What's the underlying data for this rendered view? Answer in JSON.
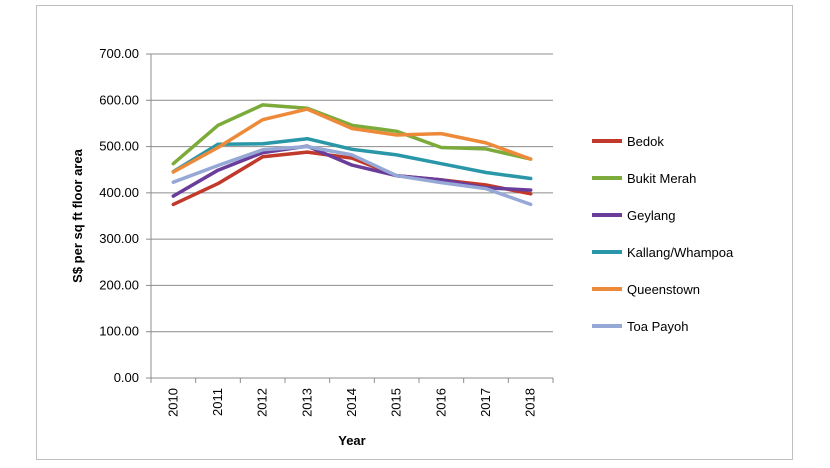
{
  "chart_data": {
    "type": "line",
    "x": [
      "2010",
      "2011",
      "2012",
      "2013",
      "2014",
      "2015",
      "2016",
      "2017",
      "2018"
    ],
    "xlabel": "Year",
    "ylabel": "S$ per sq ft floor area",
    "ylim": [
      0,
      700
    ],
    "yticks": [
      "0.00",
      "100.00",
      "200.00",
      "300.00",
      "400.00",
      "500.00",
      "600.00",
      "700.00"
    ],
    "grid": "horizontal",
    "legend_position": "right",
    "series": [
      {
        "name": "Bedok",
        "color": "#c0392b",
        "values": [
          375,
          420,
          478,
          488,
          475,
          437,
          428,
          417,
          398
        ]
      },
      {
        "name": "Bukit Merah",
        "color": "#7cab3b",
        "values": [
          463,
          546,
          590,
          583,
          546,
          533,
          498,
          495,
          473
        ]
      },
      {
        "name": "Geylang",
        "color": "#6a3d9a",
        "values": [
          393,
          449,
          487,
          501,
          460,
          437,
          428,
          411,
          406
        ]
      },
      {
        "name": "Kallang/Whampoa",
        "color": "#2a97a8",
        "values": [
          446,
          505,
          506,
          517,
          494,
          482,
          463,
          444,
          431
        ]
      },
      {
        "name": "Queenstown",
        "color": "#ed8a3a",
        "values": [
          445,
          498,
          558,
          581,
          539,
          525,
          528,
          508,
          473
        ]
      },
      {
        "name": "Toa Payoh",
        "color": "#96a8d6",
        "values": [
          423,
          459,
          493,
          500,
          482,
          437,
          422,
          409,
          375
        ]
      }
    ]
  }
}
